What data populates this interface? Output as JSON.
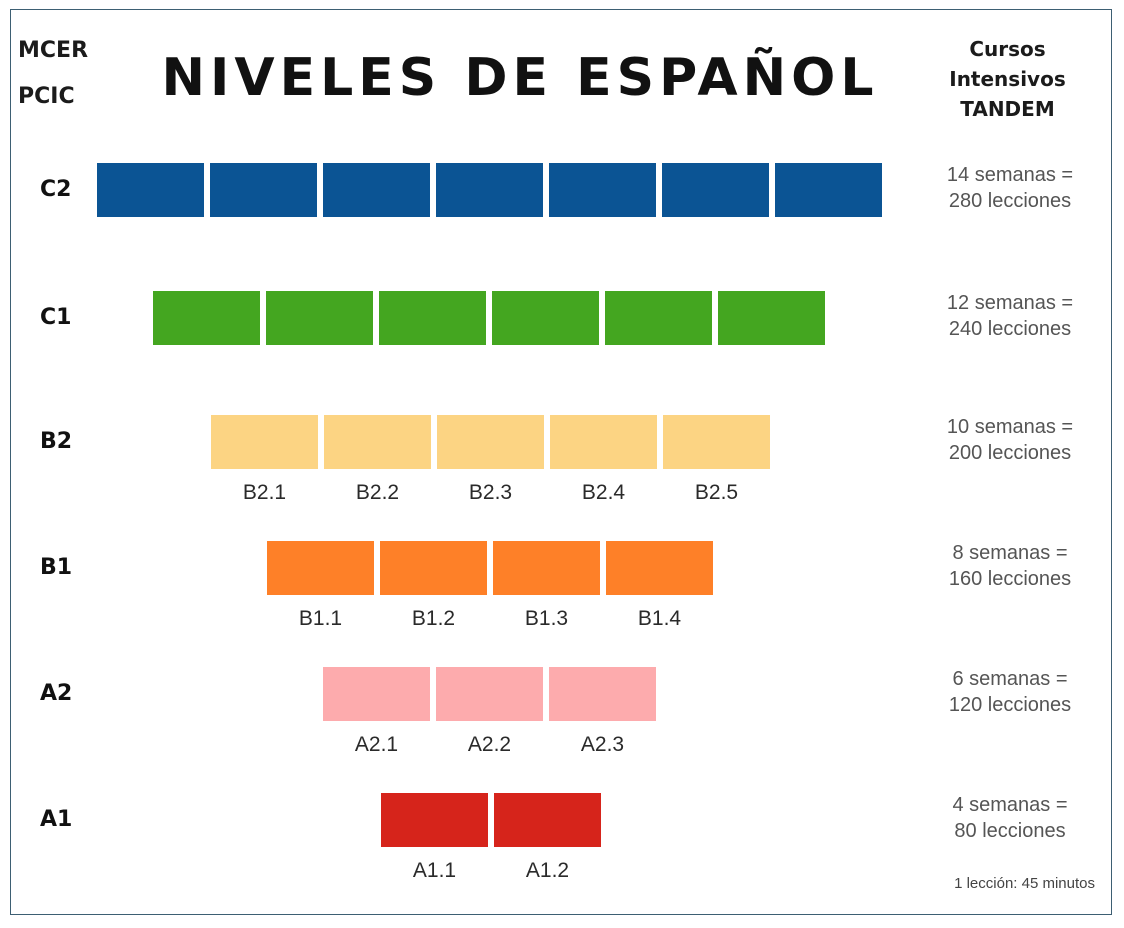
{
  "header": {
    "left_line1": "MCER",
    "left_line2": "PCIC",
    "title": "NIVELES DE ESPAÑOL",
    "right_line1": "Cursos",
    "right_line2": "Intensivos",
    "right_line3": "TANDEM"
  },
  "levels": [
    {
      "code": "C2",
      "segments": 7,
      "color": "#0b5494",
      "sublevels": [],
      "duration_line1": "14 semanas =",
      "duration_line2": "280 lecciones"
    },
    {
      "code": "C1",
      "segments": 6,
      "color": "#44a620",
      "sublevels": [],
      "duration_line1": "12 semanas =",
      "duration_line2": "240 lecciones"
    },
    {
      "code": "B2",
      "segments": 5,
      "color": "#fcd483",
      "sublevels": [
        "B2.1",
        "B2.2",
        "B2.3",
        "B2.4",
        "B2.5"
      ],
      "duration_line1": "10 semanas =",
      "duration_line2": "200 lecciones"
    },
    {
      "code": "B1",
      "segments": 4,
      "color": "#fe8028",
      "sublevels": [
        "B1.1",
        "B1.2",
        "B1.3",
        "B1.4"
      ],
      "duration_line1": "8 semanas =",
      "duration_line2": "160 lecciones"
    },
    {
      "code": "A2",
      "segments": 3,
      "color": "#fdabad",
      "sublevels": [
        "A2.1",
        "A2.2",
        "A2.3"
      ],
      "duration_line1": "6 semanas =",
      "duration_line2": "120 lecciones"
    },
    {
      "code": "A1",
      "segments": 2,
      "color": "#d6241b",
      "sublevels": [
        "A1.1",
        "A1.2"
      ],
      "duration_line1": "4 semanas =",
      "duration_line2": "80 lecciones"
    }
  ],
  "footnote": "1 lección: 45 minutos"
}
